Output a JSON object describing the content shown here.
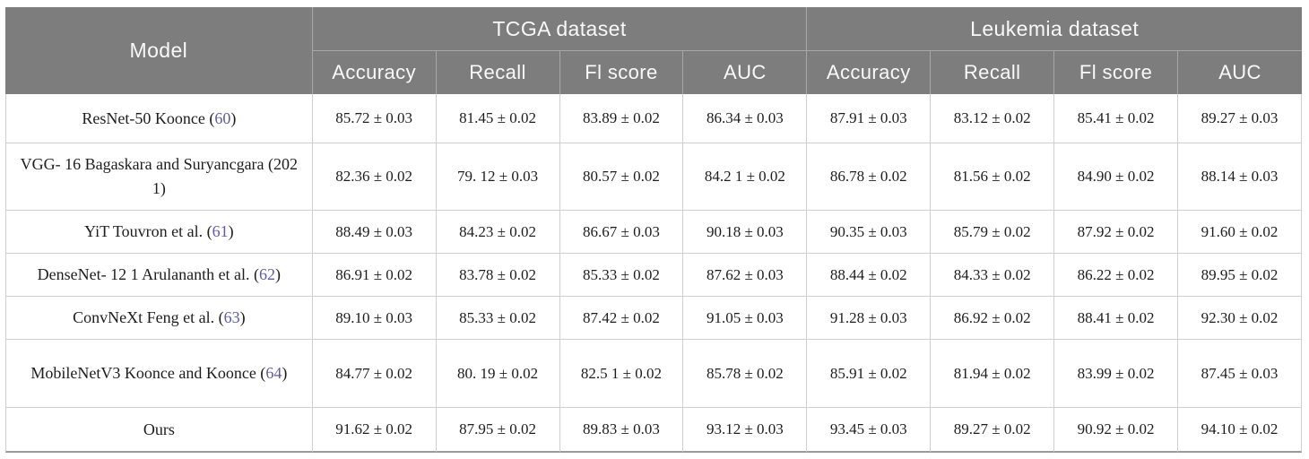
{
  "table": {
    "model_header": "Model",
    "groups": [
      {
        "label": "TCGA dataset",
        "columns": [
          "Accuracy",
          "Recall",
          "Fl score",
          "AUC"
        ]
      },
      {
        "label": "Leukemia dataset",
        "columns": [
          "Accuracy",
          "Recall",
          "Fl score",
          "AUC"
        ]
      }
    ],
    "rows": [
      {
        "model_pre": "ResNet-50 Koonce (",
        "model_cite": "60",
        "model_post": ")",
        "values": [
          "85.72 ± 0.03",
          "81.45 ± 0.02",
          "83.89 ± 0.02",
          "86.34 ± 0.03",
          "87.91 ± 0.03",
          "83.12 ± 0.02",
          "85.41 ± 0.02",
          "89.27 ± 0.03"
        ]
      },
      {
        "model_pre": "VGG- 16 Bagaskara and Suryancgara (202 1)",
        "model_cite": "",
        "model_post": "",
        "values": [
          "82.36 ± 0.02",
          "79. 12 ± 0.03",
          "80.57 ± 0.02",
          "84.2 1 ± 0.02",
          "86.78 ± 0.02",
          "81.56 ± 0.02",
          "84.90 ± 0.02",
          "88.14 ± 0.03"
        ]
      },
      {
        "model_pre": "YiT Touvron et al. (",
        "model_cite": "61",
        "model_post": ")",
        "values": [
          "88.49 ± 0.03",
          "84.23 ± 0.02",
          "86.67 ± 0.03",
          "90.18 ± 0.03",
          "90.35 ± 0.03",
          "85.79 ± 0.02",
          "87.92 ± 0.02",
          "91.60 ± 0.02"
        ]
      },
      {
        "model_pre": "DenseNet- 12 1 Arulananth et al. (",
        "model_cite": "62",
        "model_post": ")",
        "values": [
          "86.91 ± 0.02",
          "83.78 ± 0.02",
          "85.33 ± 0.02",
          "87.62 ± 0.03",
          "88.44 ± 0.02",
          "84.33 ± 0.02",
          "86.22 ± 0.02",
          "89.95 ± 0.02"
        ]
      },
      {
        "model_pre": "ConvNeXt Feng et al. (",
        "model_cite": "63",
        "model_post": ")",
        "values": [
          "89.10 ± 0.03",
          "85.33 ± 0.02",
          "87.42 ± 0.02",
          "91.05 ± 0.03",
          "91.28 ± 0.03",
          "86.92 ± 0.02",
          "88.41 ± 0.02",
          "92.30 ± 0.02"
        ]
      },
      {
        "model_pre": "MobileNetV3 Koonce and Koonce (",
        "model_cite": "64",
        "model_post": ")",
        "values": [
          "84.77 ± 0.02",
          "80. 19 ± 0.02",
          "82.5 1 ± 0.02",
          "85.78 ± 0.02",
          "85.91 ± 0.02",
          "81.94 ± 0.02",
          "83.99 ± 0.02",
          "87.45 ± 0.03"
        ]
      },
      {
        "model_pre": "Ours",
        "model_cite": "",
        "model_post": "",
        "values": [
          "91.62 ± 0.02",
          "87.95 ± 0.02",
          "89.83 ± 0.03",
          "93.12 ± 0.03",
          "93.45 ± 0.03",
          "89.27 ± 0.02",
          "90.92 ± 0.02",
          "94.10 ± 0.02"
        ]
      }
    ]
  },
  "colors": {
    "header_bg": "#7d7d7d",
    "header_text": "#f9f9f9",
    "header_divider": "#a8a8a8",
    "body_border": "#cfcfcf",
    "outer_bottom_border": "#9a9a9a",
    "body_text": "#1d1d1d",
    "citation": "#5d5ca6"
  }
}
